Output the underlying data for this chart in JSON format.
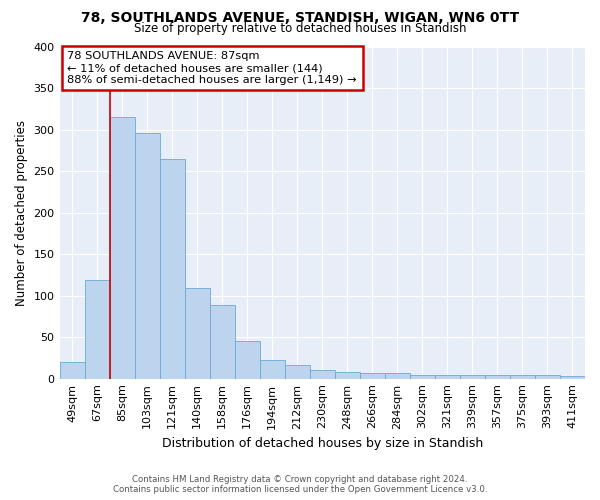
{
  "title1": "78, SOUTHLANDS AVENUE, STANDISH, WIGAN, WN6 0TT",
  "title2": "Size of property relative to detached houses in Standish",
  "xlabel": "Distribution of detached houses by size in Standish",
  "ylabel": "Number of detached properties",
  "categories": [
    "49sqm",
    "67sqm",
    "85sqm",
    "103sqm",
    "121sqm",
    "140sqm",
    "158sqm",
    "176sqm",
    "194sqm",
    "212sqm",
    "230sqm",
    "248sqm",
    "266sqm",
    "284sqm",
    "302sqm",
    "321sqm",
    "339sqm",
    "357sqm",
    "375sqm",
    "393sqm",
    "411sqm"
  ],
  "values": [
    20,
    119,
    315,
    296,
    265,
    109,
    89,
    45,
    22,
    16,
    10,
    8,
    7,
    7,
    5,
    4,
    4,
    4,
    5,
    4,
    3
  ],
  "bar_color": "#bdd4ee",
  "bar_edge_color": "#6aaad4",
  "property_bin_index": 2,
  "annotation_title": "78 SOUTHLANDS AVENUE: 87sqm",
  "annotation_line1": "← 11% of detached houses are smaller (144)",
  "annotation_line2": "88% of semi-detached houses are larger (1,149) →",
  "vline_color": "#cc0000",
  "annotation_box_edgecolor": "#cc0000",
  "footer": "Contains HM Land Registry data © Crown copyright and database right 2024.\nContains public sector information licensed under the Open Government Licence v3.0.",
  "background_color": "#e8eef8",
  "fig_background": "#ffffff",
  "ylim": [
    0,
    400
  ],
  "yticks": [
    0,
    50,
    100,
    150,
    200,
    250,
    300,
    350,
    400
  ],
  "grid_color": "#ffffff"
}
